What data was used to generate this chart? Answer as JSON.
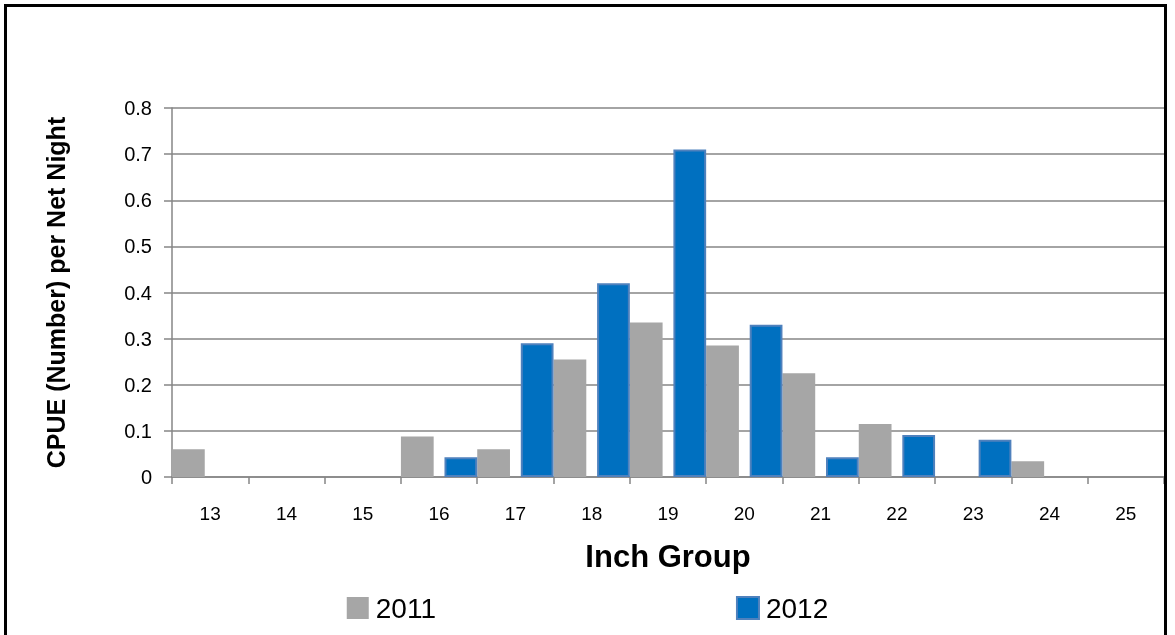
{
  "chart_data": {
    "type": "bar",
    "xlabel": "Inch Group",
    "ylabel": "CPUE (Number) per Net Night",
    "categories": [
      "13",
      "14",
      "15",
      "16",
      "17",
      "18",
      "19",
      "20",
      "21",
      "22",
      "23",
      "24",
      "25"
    ],
    "series": [
      {
        "name": "2011",
        "color": "#a6a6a6",
        "values": [
          0.06,
          0,
          0,
          0.088,
          0.06,
          0.255,
          0.335,
          0.285,
          0.225,
          0.115,
          0,
          0.034,
          0
        ]
      },
      {
        "name": "2012",
        "color": "#0070c0",
        "values": [
          0,
          0,
          0,
          0.043,
          0.29,
          0.42,
          0.71,
          0.33,
          0.043,
          0.091,
          0.081,
          0,
          0
        ]
      }
    ],
    "ylim": [
      0,
      0.8
    ],
    "yticks": [
      0,
      0.1,
      0.2,
      0.3,
      0.4,
      0.5,
      0.6,
      0.7,
      0.8
    ],
    "grid": "y",
    "legend": "bottom"
  }
}
